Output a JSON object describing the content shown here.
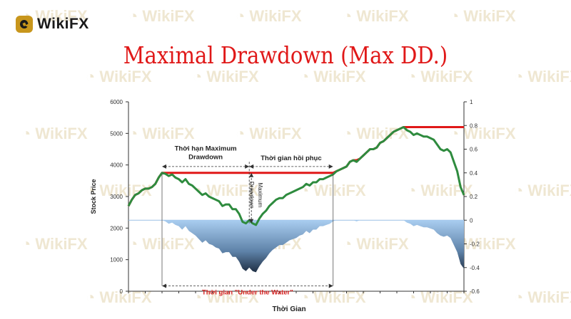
{
  "brand": {
    "name": "WikiFX",
    "watermark": "WikiFX",
    "accent": "#c8961c"
  },
  "title": "Maximal Drawdown (Max DD.)",
  "chart_data": {
    "type": "line",
    "title": "Maximal Drawdown (Max DD.)",
    "xlabel": "Thời Gian",
    "ylabel": "Stock Price",
    "ylim": [
      0,
      6000
    ],
    "y2lim": [
      -0.6,
      1
    ],
    "yticks": [
      0,
      1000,
      2000,
      3000,
      4000,
      5000,
      6000
    ],
    "y2ticks": [
      "-0.6",
      "-0.4",
      "-0.2",
      "0",
      "0.2",
      "0.4",
      "0.6",
      "0.8",
      "1"
    ],
    "x": [
      0,
      1,
      2,
      3,
      4,
      5,
      6,
      7,
      8,
      9,
      10,
      11,
      12,
      13,
      14,
      15,
      16,
      17,
      18,
      19,
      20,
      21,
      22,
      23,
      24,
      25,
      26,
      27,
      28,
      29,
      30,
      31,
      32,
      33,
      34,
      35,
      36,
      37,
      38,
      39,
      40,
      41,
      42,
      43,
      44,
      45,
      46,
      47,
      48,
      49,
      50,
      51,
      52,
      53,
      54,
      55,
      56,
      57,
      58,
      59,
      60,
      61,
      62,
      63,
      64,
      65,
      66,
      67,
      68,
      69,
      70,
      71,
      72,
      73,
      74,
      75,
      76,
      77,
      78,
      79,
      80,
      81,
      82,
      83,
      84,
      85,
      86,
      87,
      88,
      89,
      90,
      91,
      92,
      93,
      94,
      95,
      96,
      97,
      98,
      99,
      100
    ],
    "series": [
      {
        "values": [
          2700,
          2900,
          3050,
          3100,
          3200,
          3250,
          3250,
          3300,
          3400,
          3600,
          3750,
          3720,
          3650,
          3700,
          3600,
          3550,
          3450,
          3550,
          3400,
          3350,
          3250,
          3150,
          3050,
          3100,
          3000,
          2950,
          2900,
          2850,
          2700,
          2750,
          2750,
          2600,
          2600,
          2450,
          2200,
          2150,
          2250,
          2150,
          2100,
          2300,
          2450,
          2550,
          2700,
          2800,
          2900,
          2950,
          2950,
          3050,
          3100,
          3150,
          3200,
          3250,
          3300,
          3400,
          3350,
          3450,
          3450,
          3550,
          3550,
          3600,
          3650,
          3700,
          3800,
          3850,
          3900,
          3950,
          4100,
          4150,
          4100,
          4200,
          4300,
          4400,
          4500,
          4500,
          4550,
          4700,
          4750,
          4850,
          4950,
          5050,
          5100,
          5150,
          5200,
          5100,
          5050,
          4950,
          5000,
          4950,
          4900,
          4900,
          4850,
          4800,
          4650,
          4500,
          4450,
          4500,
          4400,
          4100,
          3800,
          3300,
          3050
        ],
        "color": "#2e8b3e"
      },
      {
        "values": [
          2700,
          2900,
          3050,
          3100,
          3200,
          3250,
          3250,
          3300,
          3400,
          3600,
          3750,
          3750,
          3750,
          3750,
          3750,
          3750,
          3750,
          3750,
          3750,
          3750,
          3750,
          3750,
          3750,
          3750,
          3750,
          3750,
          3750,
          3750,
          3750,
          3750,
          3750,
          3750,
          3750,
          3750,
          3750,
          3750,
          3750,
          3750,
          3750,
          3750,
          3750,
          3750,
          3750,
          3750,
          3750,
          3750,
          3750,
          3750,
          3750,
          3750,
          3750,
          3750,
          3750,
          3750,
          3750,
          3750,
          3750,
          3750,
          3750,
          3750,
          3750,
          3750,
          3800,
          3850,
          3900,
          3950,
          4100,
          4150,
          4150,
          4200,
          4300,
          4400,
          4500,
          4500,
          4550,
          4700,
          4750,
          4850,
          4950,
          5050,
          5100,
          5150,
          5200,
          5200,
          5200,
          5200,
          5200,
          5200,
          5200,
          5200,
          5200,
          5200,
          5200,
          5200,
          5200,
          5200,
          5200,
          5200,
          5200,
          5200,
          5200
        ],
        "color": "#e01818"
      }
    ],
    "drawdown_area_values": [
      0,
      0,
      0,
      0,
      0,
      0,
      0,
      0,
      0,
      0,
      0,
      -0.01,
      -0.03,
      -0.02,
      -0.04,
      -0.05,
      -0.08,
      -0.05,
      -0.09,
      -0.11,
      -0.13,
      -0.16,
      -0.19,
      -0.17,
      -0.2,
      -0.21,
      -0.23,
      -0.24,
      -0.28,
      -0.27,
      -0.27,
      -0.31,
      -0.31,
      -0.35,
      -0.41,
      -0.43,
      -0.4,
      -0.43,
      -0.44,
      -0.39,
      -0.35,
      -0.32,
      -0.28,
      -0.25,
      -0.23,
      -0.21,
      -0.21,
      -0.19,
      -0.17,
      -0.16,
      -0.15,
      -0.13,
      -0.12,
      -0.09,
      -0.11,
      -0.08,
      -0.08,
      -0.05,
      -0.05,
      -0.04,
      -0.03,
      -0.01,
      0,
      0,
      0,
      0,
      0,
      0,
      -0.01,
      0,
      0,
      0,
      0,
      0,
      0,
      0,
      0,
      0,
      0,
      0,
      0,
      0,
      0,
      -0.02,
      -0.03,
      -0.05,
      -0.04,
      -0.05,
      -0.06,
      -0.06,
      -0.07,
      -0.08,
      -0.11,
      -0.13,
      -0.14,
      -0.13,
      -0.15,
      -0.21,
      -0.27,
      -0.37,
      -0.41
    ],
    "annotations": {
      "max_dd_period": "Thời hạn Maximum\nDrawdown",
      "recovery": "Thời gian hồi phục",
      "max_dd": "Maximum\nDrawdown",
      "underwater": "Thời gian \"Under the Water\""
    },
    "grid": false
  }
}
